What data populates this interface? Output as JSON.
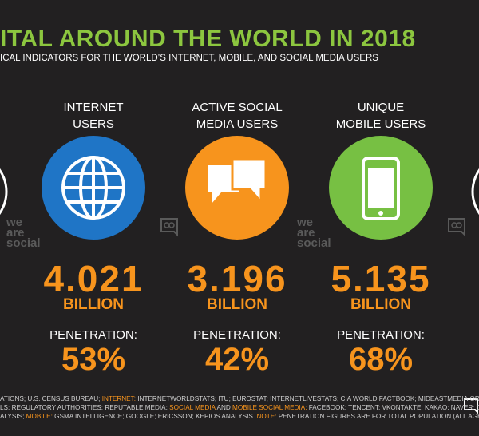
{
  "header": {
    "title": "ITAL AROUND THE WORLD IN 2018",
    "subtitle": "ICAL INDICATORS FOR THE WORLD’S INTERNET, MOBILE, AND SOCIAL MEDIA USERS"
  },
  "watermark": [
    "we",
    "are",
    "social"
  ],
  "columns": [
    {
      "label": [
        "INTERNET",
        "USERS"
      ],
      "value": "4.021",
      "unit": "BILLION",
      "penetration_label": "PENETRATION:",
      "penetration": "53%",
      "color": "#1f75c6"
    },
    {
      "label": [
        "ACTIVE SOCIAL",
        "MEDIA USERS"
      ],
      "value": "3.196",
      "unit": "BILLION",
      "penetration_label": "PENETRATION:",
      "penetration": "42%",
      "color": "#f7941d"
    },
    {
      "label": [
        "UNIQUE",
        "MOBILE USERS"
      ],
      "value": "5.135",
      "unit": "BILLION",
      "penetration_label": "PENETRATION:",
      "penetration": "68%",
      "color": "#77c043"
    }
  ],
  "footer": {
    "lines": [
      [
        {
          "text": "ATIONS; U.S. CENSUS BUREAU; ",
          "color": "#cfcfcf"
        },
        {
          "text": "INTERNET:",
          "color": "#f7941d"
        },
        {
          "text": " INTERNETWORLDSTATS; ITU; EUROSTAT; INTERNETLIVESTATS; CIA WORLD FACTBOOK; MIDEASTMEDIA.ORG;",
          "color": "#cfcfcf"
        }
      ],
      [
        {
          "text": "LS; REGULATORY AUTHORITIES; REPUTABLE MEDIA; ",
          "color": "#cfcfcf"
        },
        {
          "text": "SOCIAL MEDIA",
          "color": "#f7941d"
        },
        {
          "text": " AND ",
          "color": "#cfcfcf"
        },
        {
          "text": "MOBILE SOCIAL MEDIA:",
          "color": "#f7941d"
        },
        {
          "text": " FACEBOOK; TENCENT; VKONTAKTE; KAKAO; NAVER; DING;",
          "color": "#cfcfcf"
        }
      ],
      [
        {
          "text": "ALYSIS; ",
          "color": "#cfcfcf"
        },
        {
          "text": "MOBILE:",
          "color": "#f7941d"
        },
        {
          "text": " GSMA INTELLIGENCE; GOOGLE; ERICSSON; KEPIOS ANALYSIS. ",
          "color": "#cfcfcf"
        },
        {
          "text": "NOTE:",
          "color": "#f7941d"
        },
        {
          "text": " PENETRATION FIGURES ARE FOR TOTAL POPULATION (ALL AGES).",
          "color": "#cfcfcf"
        }
      ]
    ]
  }
}
